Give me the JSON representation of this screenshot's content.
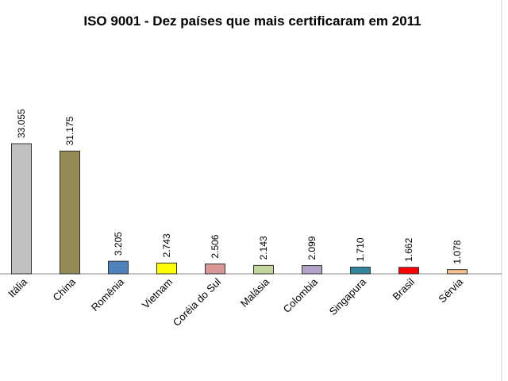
{
  "chart_data": {
    "type": "bar",
    "title": "ISO 9001 - Dez países que mais certificaram em 2011",
    "categories": [
      "Itália",
      "China",
      "Romênia",
      "Vietnam",
      "Coréia do Sul",
      "Malásia",
      "Colombia",
      "Singapura",
      "Brasil",
      "Sérvia"
    ],
    "values": [
      33055,
      31175,
      3205,
      2743,
      2506,
      2143,
      2099,
      1710,
      1662,
      1078
    ],
    "value_labels": [
      "33.055",
      "31.175",
      "3.205",
      "2.743",
      "2.506",
      "2.143",
      "2.099",
      "1.710",
      "1.662",
      "1.078"
    ],
    "colors": [
      "#c0c0c0",
      "#948a54",
      "#4f81bd",
      "#ffff00",
      "#d99694",
      "#c3d69b",
      "#b3a2c7",
      "#31859c",
      "#ff0000",
      "#fac090"
    ]
  }
}
